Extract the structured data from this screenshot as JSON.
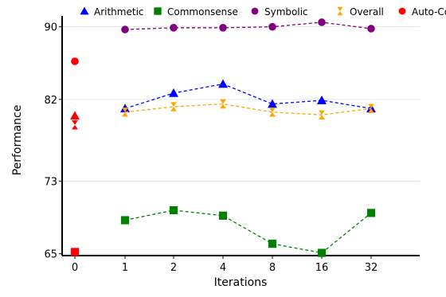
{
  "chart_data": {
    "type": "scatter",
    "xlabel": "Iterations",
    "ylabel": "Performance",
    "x_categories": [
      "0",
      "1",
      "2",
      "4",
      "8",
      "16",
      "32"
    ],
    "y_ticks": [
      65,
      73,
      82,
      90
    ],
    "ylim": [
      64.8,
      91.2
    ],
    "grid": "horizontal",
    "legend_position": "top",
    "series": [
      {
        "name": "Arithmetic",
        "color": "#0000ff",
        "marker": "triangle",
        "values": [
          null,
          81.0,
          82.7,
          83.7,
          81.5,
          81.9,
          81.0
        ]
      },
      {
        "name": "Commonsense",
        "color": "#008000",
        "marker": "square",
        "values": [
          null,
          68.7,
          69.8,
          69.2,
          66.1,
          65.1,
          69.5
        ]
      },
      {
        "name": "Symbolic",
        "color": "#800080",
        "marker": "circle",
        "values": [
          null,
          89.7,
          89.9,
          89.9,
          90.0,
          90.5,
          89.8
        ]
      },
      {
        "name": "Overall",
        "color": "#ffa500",
        "marker": "hourglass",
        "values": [
          null,
          80.6,
          81.2,
          81.5,
          80.6,
          80.3,
          81.0
        ]
      }
    ],
    "auto_cot": {
      "name": "Auto-CoT",
      "color": "#ff0000",
      "points": [
        {
          "series": "Arithmetic",
          "x": "0",
          "y": 80.2
        },
        {
          "series": "Commonsense",
          "x": "0",
          "y": 65.2
        },
        {
          "series": "Symbolic",
          "x": "0",
          "y": 86.2
        },
        {
          "series": "Overall",
          "x": "0",
          "y": 79.2
        }
      ]
    }
  }
}
